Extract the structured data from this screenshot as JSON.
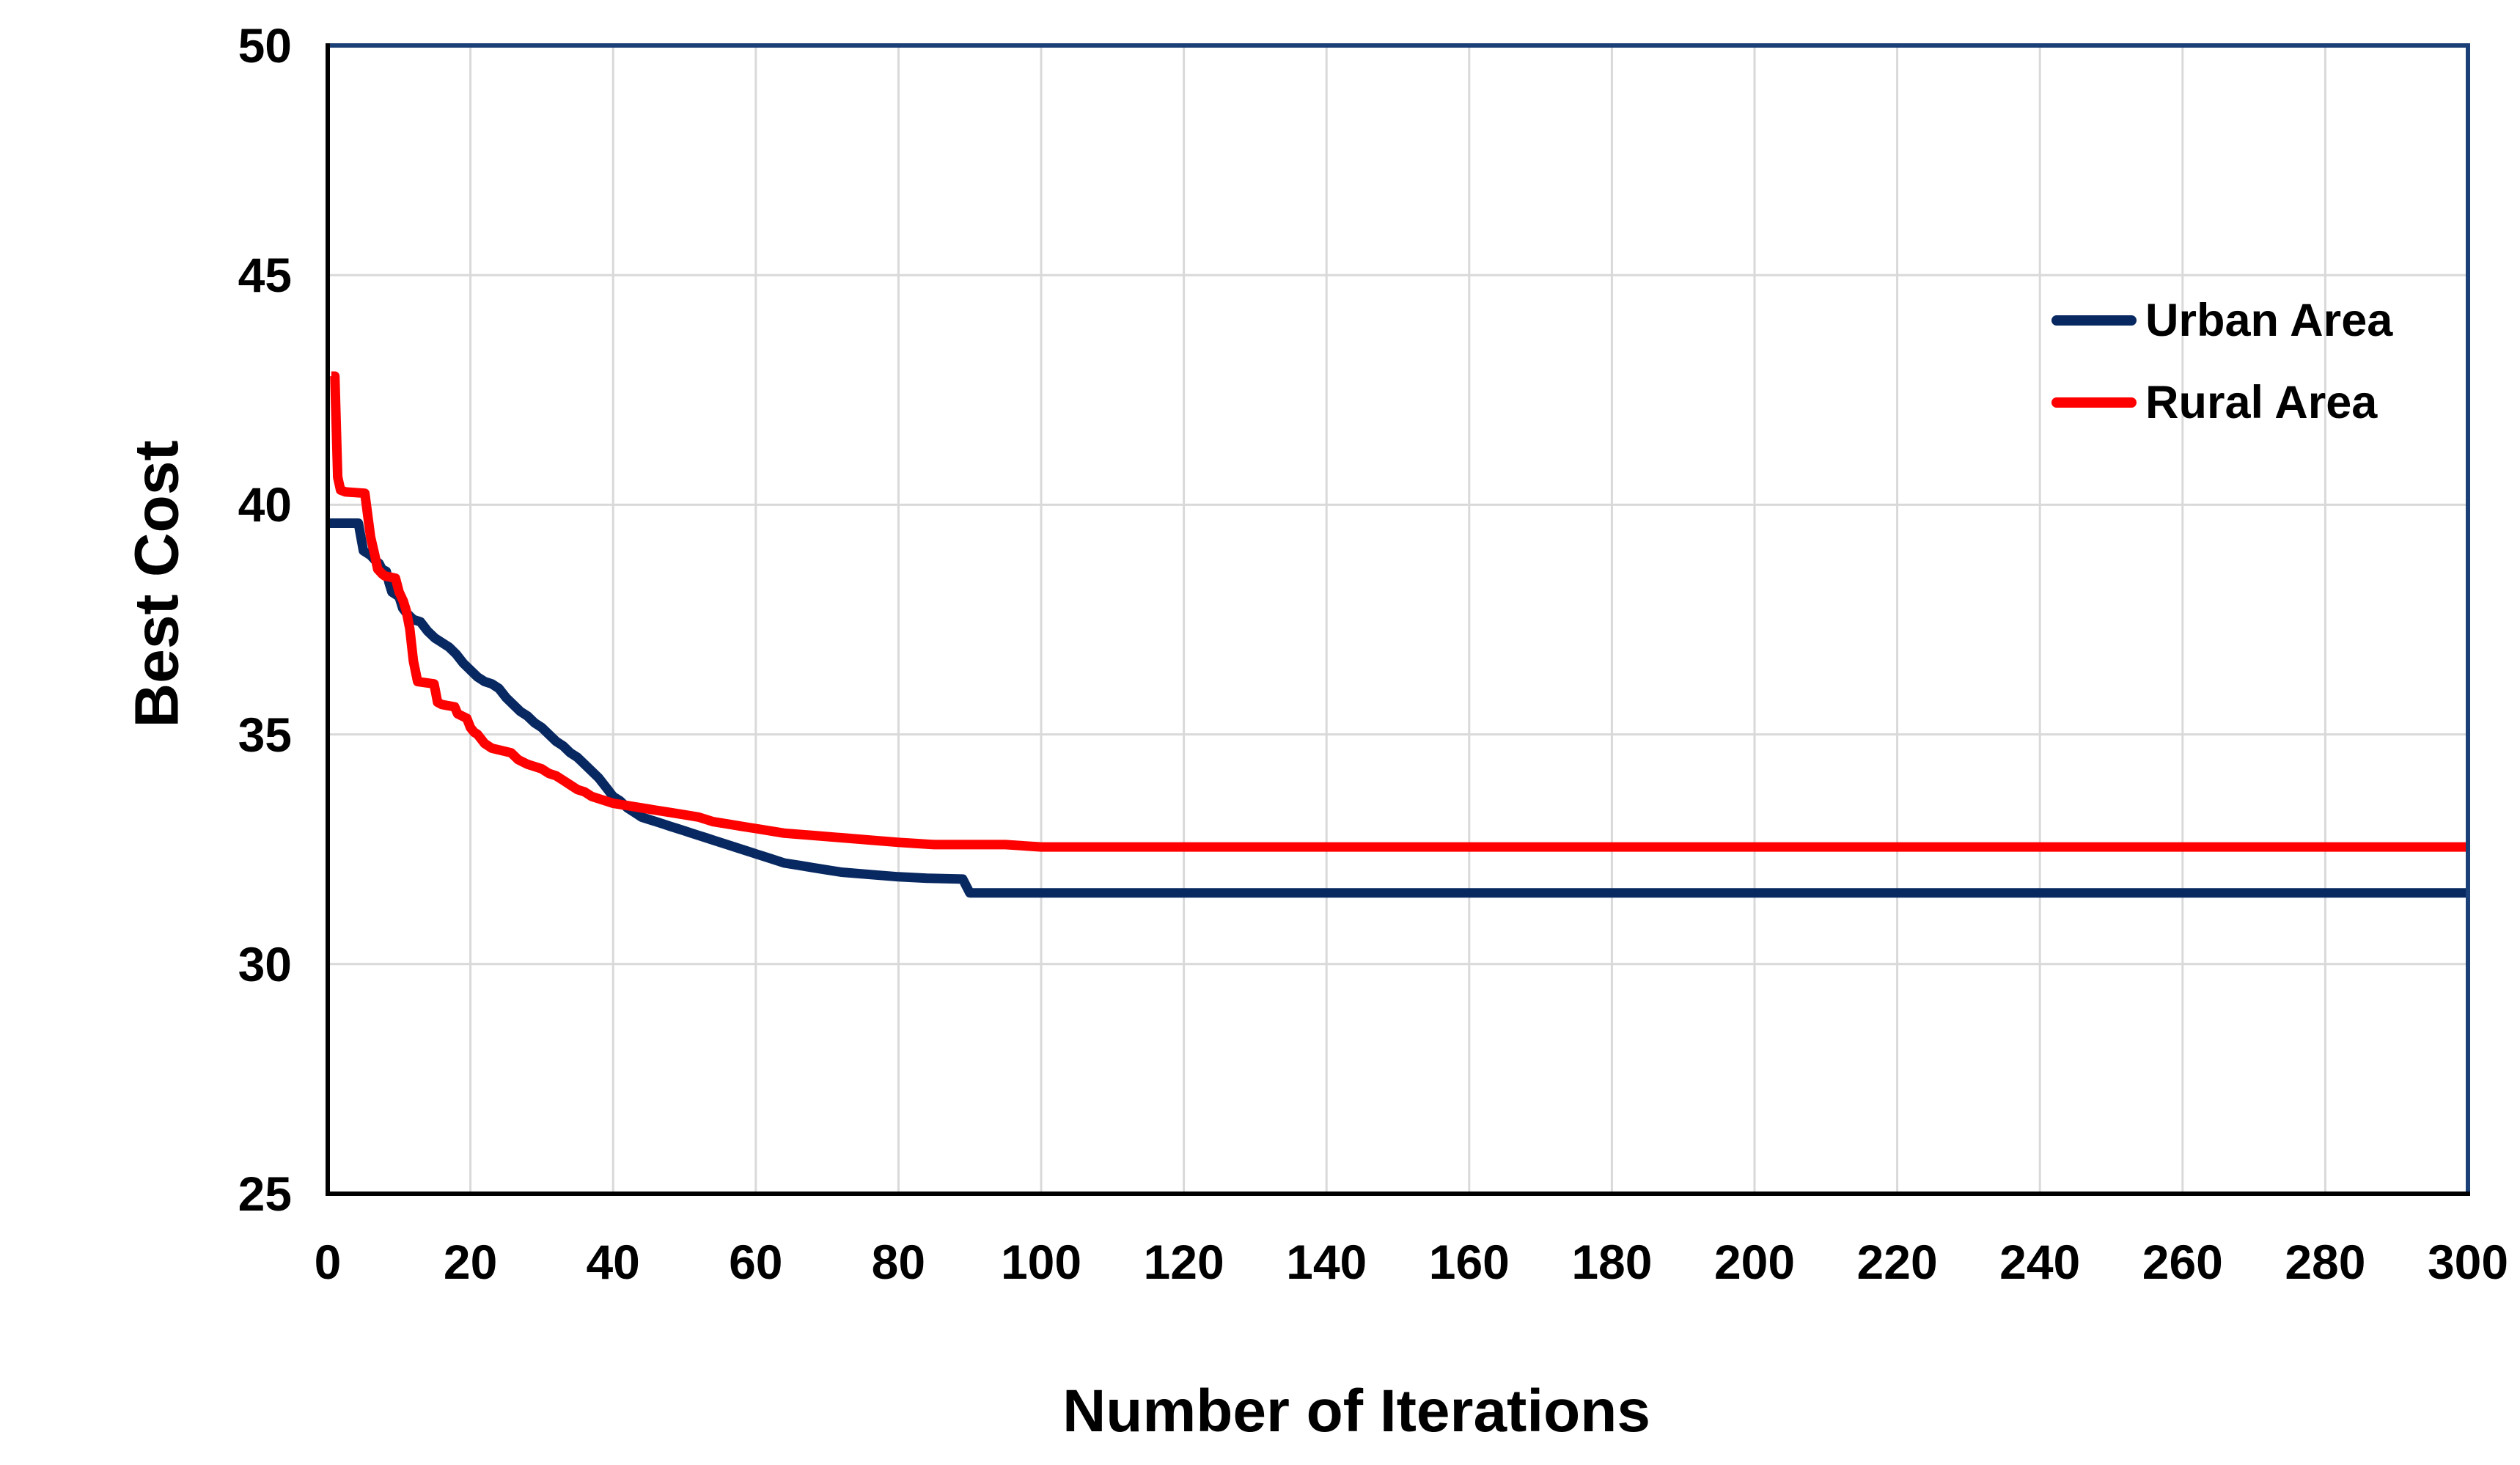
{
  "chart_data": {
    "type": "line",
    "title": "",
    "xlabel": "Number of Iterations",
    "ylabel": "Best Cost",
    "xlim": [
      0,
      300
    ],
    "ylim": [
      25,
      50
    ],
    "x_ticks": [
      0,
      20,
      40,
      60,
      80,
      100,
      120,
      140,
      160,
      180,
      200,
      220,
      240,
      260,
      280,
      300
    ],
    "y_ticks": [
      25,
      30,
      35,
      40,
      45,
      50
    ],
    "grid": true,
    "legend_position": "top-right-inside",
    "colors": {
      "urban_line": "#082861",
      "rural_line": "#FF0000",
      "gridline": "#D9D9D9",
      "axis": "#000000",
      "plot_border": "#1B3F77",
      "text": "#000000",
      "background": "#FFFFFF"
    },
    "series": [
      {
        "name": "Urban Area",
        "color": "#082861",
        "points": [
          [
            0,
            39.6
          ],
          [
            4.3,
            39.6
          ],
          [
            5,
            39.0
          ],
          [
            6,
            38.9
          ],
          [
            6.6,
            38.8
          ],
          [
            7.2,
            38.72
          ],
          [
            7.6,
            38.6
          ],
          [
            8.2,
            38.55
          ],
          [
            8.6,
            38.3
          ],
          [
            9,
            38.1
          ],
          [
            10,
            38.0
          ],
          [
            10.5,
            37.75
          ],
          [
            11,
            37.65
          ],
          [
            12,
            37.5
          ],
          [
            13,
            37.45
          ],
          [
            14,
            37.25
          ],
          [
            15,
            37.1
          ],
          [
            16,
            37.0
          ],
          [
            17,
            36.9
          ],
          [
            18,
            36.75
          ],
          [
            19,
            36.55
          ],
          [
            20,
            36.4
          ],
          [
            21,
            36.25
          ],
          [
            22,
            36.15
          ],
          [
            23,
            36.1
          ],
          [
            24,
            36.0
          ],
          [
            25,
            35.8
          ],
          [
            26,
            35.65
          ],
          [
            27,
            35.5
          ],
          [
            28,
            35.4
          ],
          [
            29,
            35.25
          ],
          [
            30,
            35.15
          ],
          [
            31,
            35.0
          ],
          [
            32,
            34.85
          ],
          [
            33,
            34.75
          ],
          [
            34,
            34.6
          ],
          [
            35,
            34.5
          ],
          [
            36,
            34.35
          ],
          [
            37,
            34.2
          ],
          [
            38,
            34.05
          ],
          [
            39,
            33.85
          ],
          [
            40,
            33.65
          ],
          [
            41,
            33.55
          ],
          [
            42,
            33.4
          ],
          [
            43,
            33.3
          ],
          [
            44,
            33.2
          ],
          [
            45,
            33.15
          ],
          [
            46,
            33.1
          ],
          [
            47,
            33.05
          ],
          [
            48,
            33.0
          ],
          [
            49,
            32.95
          ],
          [
            50,
            32.9
          ],
          [
            51,
            32.85
          ],
          [
            52,
            32.8
          ],
          [
            53,
            32.75
          ],
          [
            54,
            32.7
          ],
          [
            55,
            32.65
          ],
          [
            56,
            32.6
          ],
          [
            57,
            32.55
          ],
          [
            58,
            32.5
          ],
          [
            59,
            32.45
          ],
          [
            60,
            32.4
          ],
          [
            62,
            32.3
          ],
          [
            64,
            32.2
          ],
          [
            66,
            32.15
          ],
          [
            68,
            32.1
          ],
          [
            70,
            32.05
          ],
          [
            72,
            32.0
          ],
          [
            76,
            31.95
          ],
          [
            80,
            31.9
          ],
          [
            84,
            31.87
          ],
          [
            89,
            31.85
          ],
          [
            90,
            31.55
          ],
          [
            300,
            31.55
          ]
        ]
      },
      {
        "name": "Rural Area",
        "color": "#FF0000",
        "points": [
          [
            0.5,
            42.8
          ],
          [
            1,
            42.8
          ],
          [
            1.4,
            40.6
          ],
          [
            1.8,
            40.32
          ],
          [
            2.5,
            40.28
          ],
          [
            5.2,
            40.25
          ],
          [
            6,
            39.3
          ],
          [
            6.6,
            38.9
          ],
          [
            7,
            38.6
          ],
          [
            7.6,
            38.5
          ],
          [
            8,
            38.45
          ],
          [
            9.5,
            38.4
          ],
          [
            10,
            38.1
          ],
          [
            10.6,
            37.9
          ],
          [
            11,
            37.7
          ],
          [
            11.5,
            37.3
          ],
          [
            12,
            36.6
          ],
          [
            12.6,
            36.15
          ],
          [
            14.9,
            36.1
          ],
          [
            15.4,
            35.7
          ],
          [
            16,
            35.65
          ],
          [
            17.8,
            35.6
          ],
          [
            18.2,
            35.45
          ],
          [
            19.5,
            35.35
          ],
          [
            20,
            35.15
          ],
          [
            20.5,
            35.05
          ],
          [
            21,
            35.0
          ],
          [
            22,
            34.8
          ],
          [
            23,
            34.7
          ],
          [
            25.7,
            34.6
          ],
          [
            26.7,
            34.45
          ],
          [
            28,
            34.35
          ],
          [
            29,
            34.3
          ],
          [
            30,
            34.25
          ],
          [
            31,
            34.15
          ],
          [
            32,
            34.1
          ],
          [
            33,
            34.0
          ],
          [
            34,
            33.9
          ],
          [
            35,
            33.8
          ],
          [
            36,
            33.75
          ],
          [
            37,
            33.65
          ],
          [
            38,
            33.6
          ],
          [
            39,
            33.55
          ],
          [
            40,
            33.5
          ],
          [
            42,
            33.45
          ],
          [
            44,
            33.4
          ],
          [
            46,
            33.35
          ],
          [
            48,
            33.3
          ],
          [
            50,
            33.25
          ],
          [
            52,
            33.2
          ],
          [
            54,
            33.1
          ],
          [
            56,
            33.05
          ],
          [
            58,
            33.0
          ],
          [
            60,
            32.95
          ],
          [
            64,
            32.85
          ],
          [
            68,
            32.8
          ],
          [
            72,
            32.75
          ],
          [
            76,
            32.7
          ],
          [
            80,
            32.65
          ],
          [
            85,
            32.6
          ],
          [
            95,
            32.6
          ],
          [
            100,
            32.55
          ],
          [
            300,
            32.55
          ]
        ]
      }
    ]
  }
}
